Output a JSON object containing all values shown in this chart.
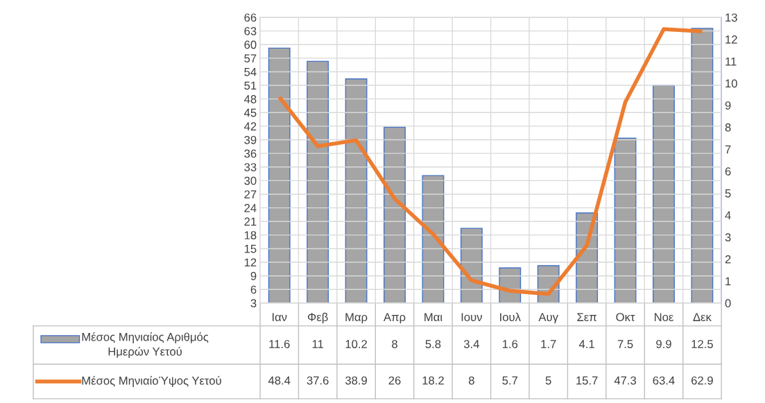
{
  "chart_data": {
    "type": "bar",
    "categories": [
      "Ιαν",
      "Φεβ",
      "Μαρ",
      "Απρ",
      "Μαι",
      "Ιουν",
      "Ιουλ",
      "Αυγ",
      "Σεπ",
      "Οκτ",
      "Νοε",
      "Δεκ"
    ],
    "series": [
      {
        "name": "Μέσος Μηνιαίος Αριθμός Ημερών Υετού",
        "axis": "y2",
        "color": "#a5a5a5",
        "values": [
          11.6,
          11,
          10.2,
          8,
          5.8,
          3.4,
          1.6,
          1.7,
          4.1,
          7.5,
          9.9,
          12.5
        ]
      },
      {
        "name": "Μέσος ΜηνιαίοΎψος Υετού",
        "type": "line",
        "axis": "y",
        "color": "#ed7d31",
        "values": [
          48.4,
          37.6,
          38.9,
          26,
          18.2,
          8,
          5.7,
          5,
          15.7,
          47.3,
          63.4,
          62.9
        ]
      }
    ],
    "ylim": [
      3,
      66
    ],
    "yticks": [
      3,
      6,
      9,
      12,
      15,
      18,
      21,
      24,
      27,
      30,
      33,
      36,
      39,
      42,
      45,
      48,
      51,
      54,
      57,
      60,
      63,
      66
    ],
    "y2lim": [
      0,
      13
    ],
    "y2ticks": [
      0,
      1,
      2,
      3,
      4,
      5,
      6,
      7,
      8,
      9,
      10,
      11,
      12,
      13
    ],
    "grid": true,
    "legend": "bottom left",
    "data_labels": true
  }
}
